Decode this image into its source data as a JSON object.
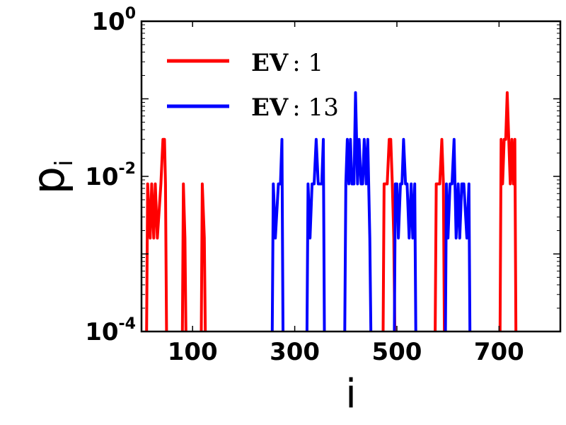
{
  "chart_data": {
    "type": "line",
    "xlabel": "i",
    "ylabel": "p",
    "ylabel_sub": "i",
    "xlim": [
      0,
      820
    ],
    "ylim": [
      0.0001,
      1
    ],
    "yscale": "log",
    "y_base": 0.0001,
    "xticks": [
      100,
      300,
      500,
      700
    ],
    "xtick_labels": [
      "100",
      "300",
      "500",
      "700"
    ],
    "yticks": [
      {
        "base": "10",
        "exp": "0",
        "value": 1
      },
      {
        "base": "10",
        "exp": "-2",
        "value": 0.01
      },
      {
        "base": "10",
        "exp": "-4",
        "value": 0.0001
      }
    ],
    "legend_position": "top-left",
    "series": [
      {
        "name": "EV : 1",
        "label_bold": "EV",
        "label_rest": ": 1",
        "color": "#ff0000",
        "peaks": [
          [
            12,
            0.008
          ],
          [
            17,
            0.0016
          ],
          [
            20,
            0.008
          ],
          [
            24,
            0.0016
          ],
          [
            27,
            0.008
          ],
          [
            31,
            0.0016
          ],
          [
            38,
            0.008
          ],
          [
            42,
            0.03
          ],
          [
            45,
            0.03
          ],
          [
            47,
            0.008
          ],
          [
            82,
            0.008
          ],
          [
            85,
            0.0016
          ],
          [
            119,
            0.008
          ],
          [
            123,
            0.0016
          ],
          [
            475,
            0.008
          ],
          [
            478,
            0.008
          ],
          [
            481,
            0.008
          ],
          [
            485,
            0.03
          ],
          [
            488,
            0.03
          ],
          [
            491,
            0.008
          ],
          [
            494,
            0.0016
          ],
          [
            577,
            0.008
          ],
          [
            580,
            0.008
          ],
          [
            584,
            0.008
          ],
          [
            588,
            0.03
          ],
          [
            591,
            0.008
          ],
          [
            704,
            0.03
          ],
          [
            707,
            0.008
          ],
          [
            710,
            0.03
          ],
          [
            713,
            0.03
          ],
          [
            716,
            0.12
          ],
          [
            719,
            0.03
          ],
          [
            722,
            0.008
          ],
          [
            725,
            0.03
          ],
          [
            728,
            0.008
          ],
          [
            731,
            0.03
          ]
        ]
      },
      {
        "name": "EV : 13",
        "label_bold": "EV",
        "label_rest": ": 13",
        "color": "#0000ff",
        "peaks": [
          [
            258,
            0.008
          ],
          [
            262,
            0.0016
          ],
          [
            268,
            0.008
          ],
          [
            272,
            0.008
          ],
          [
            275,
            0.03
          ],
          [
            326,
            0.008
          ],
          [
            330,
            0.0016
          ],
          [
            334,
            0.008
          ],
          [
            338,
            0.008
          ],
          [
            342,
            0.03
          ],
          [
            346,
            0.008
          ],
          [
            349,
            0.008
          ],
          [
            353,
            0.008
          ],
          [
            356,
            0.03
          ],
          [
            400,
            0.008
          ],
          [
            403,
            0.03
          ],
          [
            406,
            0.008
          ],
          [
            409,
            0.03
          ],
          [
            412,
            0.008
          ],
          [
            416,
            0.008
          ],
          [
            419,
            0.12
          ],
          [
            423,
            0.008
          ],
          [
            426,
            0.03
          ],
          [
            430,
            0.008
          ],
          [
            433,
            0.008
          ],
          [
            436,
            0.03
          ],
          [
            440,
            0.008
          ],
          [
            443,
            0.03
          ],
          [
            447,
            0.0016
          ],
          [
            497,
            0.008
          ],
          [
            500,
            0.008
          ],
          [
            503,
            0.0016
          ],
          [
            507,
            0.008
          ],
          [
            510,
            0.008
          ],
          [
            513,
            0.03
          ],
          [
            517,
            0.008
          ],
          [
            520,
            0.008
          ],
          [
            524,
            0.0016
          ],
          [
            528,
            0.008
          ],
          [
            531,
            0.0016
          ],
          [
            535,
            0.008
          ],
          [
            597,
            0.008
          ],
          [
            600,
            0.0016
          ],
          [
            604,
            0.008
          ],
          [
            608,
            0.008
          ],
          [
            612,
            0.03
          ],
          [
            616,
            0.0016
          ],
          [
            620,
            0.008
          ],
          [
            623,
            0.0016
          ],
          [
            627,
            0.008
          ],
          [
            631,
            0.008
          ],
          [
            637,
            0.0016
          ],
          [
            641,
            0.008
          ]
        ]
      }
    ]
  }
}
